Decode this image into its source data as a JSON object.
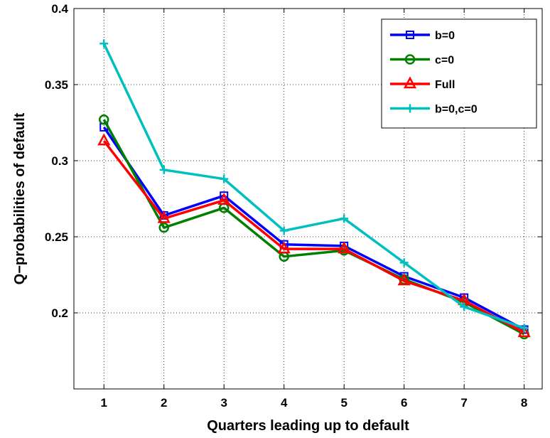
{
  "chart_data": {
    "type": "line",
    "xlabel": "Quarters leading up to default",
    "ylabel": "Q−probabilities of default",
    "x": [
      1,
      2,
      3,
      4,
      5,
      6,
      7,
      8
    ],
    "xlim": [
      0.5,
      8.3
    ],
    "ylim": [
      0.15,
      0.4
    ],
    "xticks": [
      "1",
      "2",
      "3",
      "4",
      "5",
      "6",
      "7",
      "8"
    ],
    "yticks": [
      "0.2",
      "0.25",
      "0.3",
      "0.35",
      "0.4"
    ],
    "grid": true,
    "legend_position": "top-right",
    "series": [
      {
        "name": "b=0",
        "color": "#0000ff",
        "marker": "square",
        "values": [
          0.322,
          0.264,
          0.277,
          0.245,
          0.244,
          0.224,
          0.21,
          0.189
        ]
      },
      {
        "name": "c=0",
        "color": "#007f00",
        "marker": "circle",
        "values": [
          0.327,
          0.256,
          0.269,
          0.237,
          0.241,
          0.222,
          0.207,
          0.186
        ]
      },
      {
        "name": "Full",
        "color": "#ff0000",
        "marker": "triangle",
        "values": [
          0.313,
          0.262,
          0.274,
          0.242,
          0.242,
          0.221,
          0.208,
          0.187
        ]
      },
      {
        "name": "b=0,c=0",
        "color": "#00bfbf",
        "marker": "plus",
        "values": [
          0.377,
          0.294,
          0.288,
          0.254,
          0.262,
          0.233,
          0.204,
          0.19
        ]
      }
    ]
  }
}
